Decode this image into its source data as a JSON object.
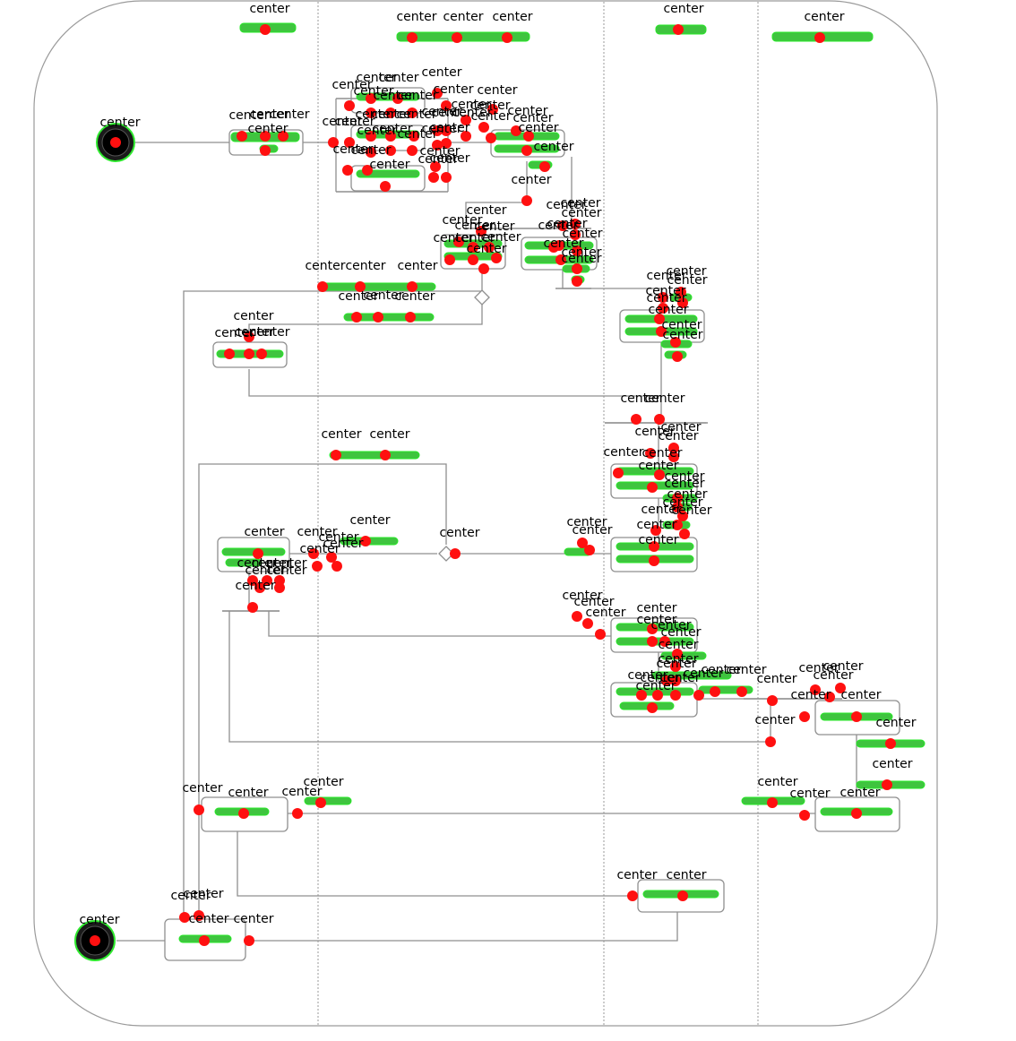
{
  "diagram": {
    "marker_label": "center",
    "colors": {
      "marker": "#ff1010",
      "outline": "#2ee82e",
      "node_fill": "#1a1a1a",
      "line": "#8f8f8f",
      "frame": "#9a9a9a"
    }
  }
}
